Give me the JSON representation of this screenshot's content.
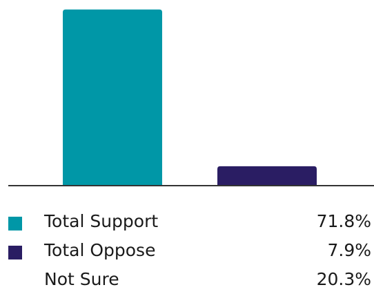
{
  "chart_data": {
    "type": "bar",
    "categories": [
      "Total Support",
      "Total Oppose",
      "Not Sure"
    ],
    "values": [
      71.8,
      7.9,
      20.3
    ],
    "value_labels": [
      "71.8%",
      "7.9%",
      "20.3%"
    ],
    "colors": [
      "#0097a7",
      "#2a1d63",
      null
    ],
    "ylim": [
      0,
      72
    ],
    "grid": false,
    "legend": "bottom",
    "title": "",
    "xlabel": "",
    "ylabel": ""
  }
}
